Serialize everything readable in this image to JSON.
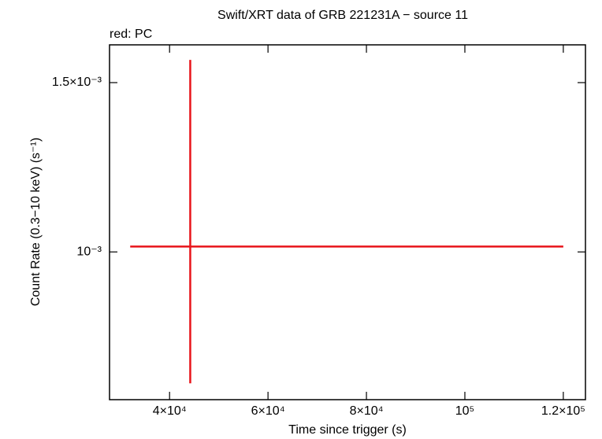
{
  "chart_data": {
    "type": "errorbar",
    "title": "Swift/XRT data of GRB 221231A − source 11",
    "subtitle": "red: PC",
    "x_label": "Time since trigger (s)",
    "y_label": "Count Rate (0.3−10 keV) (s⁻¹)",
    "series": [
      {
        "name": "PC",
        "color": "#e8141a",
        "x": [
          44200
        ],
        "x_err_low": [
          12200
        ],
        "x_err_high": [
          75800
        ],
        "values": [
          0.001013
        ],
        "err_high": [
          0.000571
        ],
        "err_low": [
          0.000283
        ]
      }
    ],
    "xlim": [
      27800,
      124500
    ],
    "xticks": [
      {
        "value": 40000,
        "label": "4×10⁴"
      },
      {
        "value": 60000,
        "label": "6×10⁴"
      },
      {
        "value": 80000,
        "label": "8×10⁴"
      },
      {
        "value": 100000,
        "label": "10⁵"
      },
      {
        "value": 120000,
        "label": "1.2×10⁵"
      }
    ],
    "ylim": [
      0.000702,
      0.001642
    ],
    "yticks": [
      {
        "value": 0.001,
        "label": "10⁻³"
      },
      {
        "value": 0.0015,
        "label": "1.5×10⁻³"
      }
    ],
    "y_log": true
  }
}
